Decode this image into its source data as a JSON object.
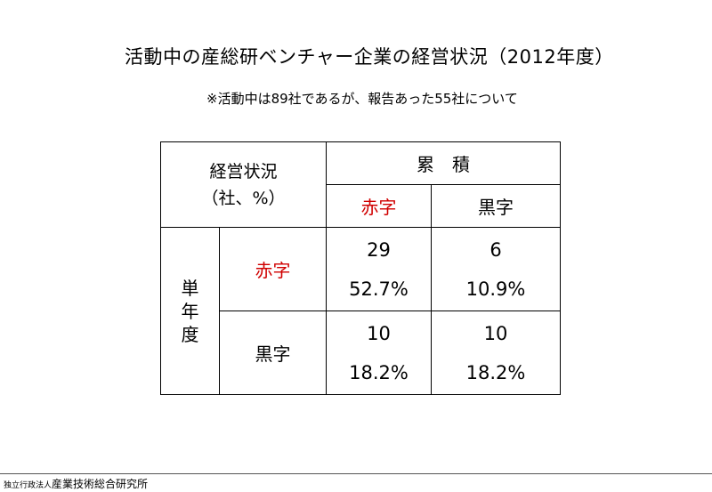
{
  "title": "活動中の産総研ベンチャー企業の経営状況（2012年度）",
  "subtitle": "※活動中は89社であるが、報告あった55社について",
  "table": {
    "corner_line1": "経営状況",
    "corner_line2": "（社、%）",
    "cumulative_header": "累　積",
    "col_deficit": "赤字",
    "col_surplus": "黒字",
    "single_year_header": [
      "単",
      "年",
      "度"
    ],
    "row_deficit": "赤字",
    "row_surplus": "黒字",
    "cells": {
      "deficit_deficit": {
        "count": "29",
        "pct": "52.7%"
      },
      "deficit_surplus": {
        "count": "6",
        "pct": "10.9%"
      },
      "surplus_deficit": {
        "count": "10",
        "pct": "18.2%"
      },
      "surplus_surplus": {
        "count": "10",
        "pct": "18.2%"
      }
    }
  },
  "footer": {
    "prefix": "独立行政法人",
    "name": "産業技術総合研究所"
  },
  "colors": {
    "accent_red": "#d00000",
    "text": "#000000"
  }
}
